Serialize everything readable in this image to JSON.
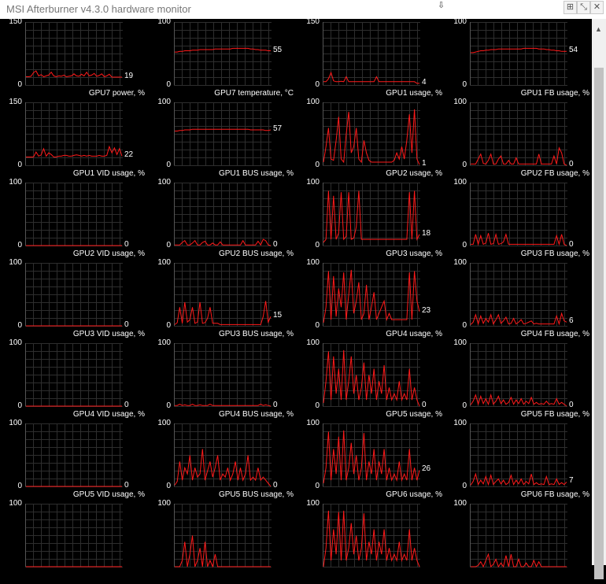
{
  "window": {
    "title": "MSI Afterburner v4.3.0 hardware monitor",
    "icons": [
      "resize-icon",
      "minimize-icon",
      "close-icon"
    ]
  },
  "graphs": [
    {
      "label": "GPU7 power, %",
      "max": "150",
      "min": "0",
      "value": "19",
      "samples": [
        20,
        20,
        21,
        30,
        34,
        22,
        25,
        20,
        22,
        24,
        31,
        22,
        20,
        22,
        21,
        24,
        20,
        21,
        22,
        27,
        22,
        21,
        26,
        22,
        31,
        22,
        24,
        28,
        21,
        23,
        27,
        20,
        22,
        26,
        19,
        19,
        19,
        19,
        19
      ]
    },
    {
      "label": "GPU7 temperature, °C",
      "max": "100",
      "min": "0",
      "value": "55",
      "samples": [
        53,
        53,
        54,
        54,
        55,
        55,
        55,
        56,
        56,
        56,
        57,
        57,
        57,
        57,
        57,
        57,
        58,
        58,
        58,
        58,
        58,
        58,
        58,
        59,
        59,
        59,
        59,
        59,
        59,
        59,
        58,
        58,
        57,
        57,
        56,
        56,
        56,
        55,
        55
      ]
    },
    {
      "label": "GPU1 usage, %",
      "max": "150",
      "min": "0",
      "value": "4",
      "samples": [
        8,
        8,
        15,
        30,
        10,
        8,
        8,
        9,
        8,
        20,
        8,
        8,
        8,
        8,
        8,
        8,
        8,
        8,
        8,
        8,
        8,
        20,
        8,
        8,
        8,
        8,
        8,
        8,
        8,
        8,
        8,
        8,
        8,
        8,
        8,
        8,
        8,
        4,
        4
      ]
    },
    {
      "label": "GPU1 FB usage, %",
      "max": "100",
      "min": "0",
      "value": "54",
      "samples": [
        52,
        52,
        53,
        54,
        55,
        55,
        56,
        56,
        57,
        57,
        57,
        58,
        58,
        58,
        58,
        58,
        58,
        58,
        58,
        58,
        58,
        59,
        59,
        59,
        59,
        59,
        59,
        58,
        58,
        58,
        57,
        57,
        56,
        56,
        55,
        55,
        54,
        54,
        54
      ]
    },
    {
      "label": "GPU1 VID usage, %",
      "max": "150",
      "min": "0",
      "value": "22",
      "samples": [
        20,
        20,
        20,
        20,
        32,
        22,
        25,
        40,
        22,
        30,
        26,
        20,
        20,
        22,
        22,
        24,
        24,
        22,
        22,
        24,
        25,
        24,
        22,
        24,
        22,
        24,
        22,
        22,
        22,
        24,
        22,
        22,
        24,
        45,
        30,
        42,
        26,
        40,
        22
      ]
    },
    {
      "label": "GPU1 BUS usage, %",
      "max": "100",
      "min": "0",
      "value": "57",
      "samples": [
        55,
        55,
        56,
        56,
        57,
        57,
        57,
        58,
        58,
        58,
        58,
        58,
        58,
        58,
        58,
        58,
        58,
        58,
        58,
        58,
        58,
        58,
        58,
        58,
        58,
        58,
        58,
        58,
        58,
        58,
        57,
        57,
        57,
        57,
        57,
        57,
        56,
        56,
        57
      ]
    },
    {
      "label": "GPU2 usage, %",
      "max": "100",
      "min": "0",
      "value": "1",
      "samples": [
        5,
        30,
        60,
        10,
        8,
        40,
        78,
        10,
        5,
        50,
        86,
        20,
        30,
        60,
        10,
        5,
        40,
        20,
        8,
        5,
        5,
        5,
        5,
        5,
        5,
        5,
        5,
        5,
        8,
        20,
        10,
        30,
        10,
        40,
        82,
        20,
        90,
        10,
        1
      ]
    },
    {
      "label": "GPU2 FB usage, %",
      "max": "100",
      "min": "0",
      "value": "0",
      "samples": [
        2,
        2,
        2,
        10,
        18,
        3,
        2,
        8,
        18,
        2,
        2,
        10,
        15,
        2,
        2,
        8,
        2,
        2,
        12,
        2,
        2,
        2,
        2,
        2,
        2,
        2,
        2,
        18,
        2,
        2,
        2,
        2,
        2,
        15,
        2,
        28,
        20,
        2,
        0
      ]
    },
    {
      "label": "GPU2 VID usage, %",
      "max": "100",
      "min": "0",
      "value": "0",
      "samples": [
        0,
        0,
        0,
        0,
        0,
        0,
        0,
        0,
        0,
        0,
        0,
        0,
        0,
        0,
        0,
        0,
        0,
        0,
        0,
        0,
        0,
        0,
        0,
        0,
        0,
        0,
        0,
        0,
        0,
        0,
        0,
        0,
        0,
        0,
        0,
        0,
        0,
        0,
        0
      ]
    },
    {
      "label": "GPU2 BUS usage, %",
      "max": "100",
      "min": "0",
      "value": "0",
      "samples": [
        1,
        1,
        1,
        5,
        8,
        1,
        1,
        4,
        8,
        1,
        1,
        5,
        7,
        1,
        1,
        4,
        1,
        1,
        6,
        1,
        1,
        1,
        1,
        1,
        1,
        1,
        1,
        8,
        1,
        1,
        1,
        1,
        1,
        7,
        1,
        10,
        8,
        1,
        0
      ]
    },
    {
      "label": "GPU3 usage, %",
      "max": "100",
      "min": "0",
      "value": "18",
      "samples": [
        5,
        10,
        88,
        10,
        80,
        10,
        20,
        86,
        10,
        15,
        86,
        10,
        12,
        30,
        88,
        10,
        10,
        10,
        10,
        10,
        10,
        10,
        10,
        10,
        10,
        10,
        10,
        10,
        10,
        10,
        10,
        10,
        10,
        10,
        86,
        10,
        88,
        10,
        18
      ]
    },
    {
      "label": "GPU3 FB usage, %",
      "max": "100",
      "min": "0",
      "value": "0",
      "samples": [
        2,
        2,
        18,
        2,
        16,
        2,
        4,
        20,
        2,
        3,
        18,
        2,
        3,
        6,
        18,
        2,
        2,
        2,
        2,
        2,
        2,
        2,
        2,
        2,
        2,
        2,
        2,
        2,
        2,
        2,
        2,
        2,
        2,
        2,
        16,
        2,
        18,
        2,
        0
      ]
    },
    {
      "label": "GPU3 VID usage, %",
      "max": "100",
      "min": "0",
      "value": "0",
      "samples": [
        0,
        0,
        0,
        0,
        0,
        0,
        0,
        0,
        0,
        0,
        0,
        0,
        0,
        0,
        0,
        0,
        0,
        0,
        0,
        0,
        0,
        0,
        0,
        0,
        0,
        0,
        0,
        0,
        0,
        0,
        0,
        0,
        0,
        0,
        0,
        0,
        0,
        0,
        0
      ]
    },
    {
      "label": "GPU3 BUS usage, %",
      "max": "100",
      "min": "0",
      "value": "15",
      "samples": [
        2,
        5,
        30,
        4,
        38,
        6,
        10,
        30,
        4,
        6,
        38,
        4,
        5,
        12,
        30,
        4,
        4,
        4,
        2,
        2,
        2,
        2,
        2,
        2,
        2,
        2,
        2,
        2,
        2,
        2,
        2,
        2,
        2,
        2,
        2,
        15,
        40,
        6,
        15
      ]
    },
    {
      "label": "GPU4 usage, %",
      "max": "100",
      "min": "0",
      "value": "23",
      "samples": [
        5,
        30,
        88,
        10,
        80,
        15,
        60,
        30,
        86,
        10,
        50,
        90,
        20,
        40,
        70,
        10,
        20,
        66,
        10,
        30,
        54,
        10,
        20,
        30,
        40,
        10,
        20,
        10,
        10,
        10,
        10,
        10,
        10,
        10,
        86,
        10,
        88,
        40,
        23
      ]
    },
    {
      "label": "GPU4 FB usage, %",
      "max": "100",
      "min": "0",
      "value": "6",
      "samples": [
        2,
        6,
        18,
        3,
        16,
        4,
        12,
        6,
        18,
        3,
        10,
        18,
        4,
        8,
        14,
        3,
        4,
        12,
        3,
        6,
        10,
        3,
        4,
        6,
        8,
        3,
        4,
        3,
        3,
        3,
        3,
        3,
        3,
        3,
        16,
        3,
        20,
        8,
        6
      ]
    },
    {
      "label": "GPU4 VID usage, %",
      "max": "100",
      "min": "0",
      "value": "0",
      "samples": [
        0,
        0,
        0,
        0,
        0,
        0,
        0,
        0,
        0,
        0,
        0,
        0,
        0,
        0,
        0,
        0,
        0,
        0,
        0,
        0,
        0,
        0,
        0,
        0,
        0,
        0,
        0,
        0,
        0,
        0,
        0,
        0,
        0,
        0,
        0,
        0,
        0,
        0,
        0
      ]
    },
    {
      "label": "GPU4 BUS usage, %",
      "max": "100",
      "min": "0",
      "value": "0",
      "samples": [
        1,
        1,
        3,
        1,
        2,
        1,
        1,
        3,
        1,
        1,
        2,
        1,
        1,
        1,
        3,
        1,
        1,
        1,
        1,
        1,
        1,
        1,
        1,
        1,
        1,
        1,
        1,
        1,
        1,
        1,
        1,
        1,
        1,
        1,
        3,
        1,
        2,
        1,
        0
      ]
    },
    {
      "label": "GPU5 usage, %",
      "max": "100",
      "min": "0",
      "value": "0",
      "samples": [
        5,
        40,
        88,
        10,
        80,
        20,
        60,
        10,
        90,
        10,
        40,
        80,
        20,
        50,
        10,
        30,
        70,
        10,
        50,
        20,
        60,
        10,
        40,
        20,
        66,
        10,
        30,
        10,
        20,
        10,
        40,
        10,
        20,
        10,
        60,
        10,
        30,
        10,
        0
      ]
    },
    {
      "label": "GPU5 FB usage, %",
      "max": "100",
      "min": "0",
      "value": "0",
      "samples": [
        2,
        8,
        18,
        3,
        16,
        4,
        12,
        3,
        18,
        3,
        8,
        16,
        4,
        10,
        3,
        6,
        14,
        3,
        10,
        4,
        12,
        3,
        8,
        4,
        14,
        3,
        6,
        3,
        4,
        3,
        8,
        3,
        4,
        3,
        12,
        3,
        6,
        3,
        0
      ]
    },
    {
      "label": "GPU5 VID usage, %",
      "max": "100",
      "min": "0",
      "value": "0",
      "samples": [
        0,
        0,
        0,
        0,
        0,
        0,
        0,
        0,
        0,
        0,
        0,
        0,
        0,
        0,
        0,
        0,
        0,
        0,
        0,
        0,
        0,
        0,
        0,
        0,
        0,
        0,
        0,
        0,
        0,
        0,
        0,
        0,
        0,
        0,
        0,
        0,
        0,
        0,
        0
      ]
    },
    {
      "label": "GPU5 BUS usage, %",
      "max": "100",
      "min": "0",
      "value": "0",
      "samples": [
        2,
        8,
        40,
        10,
        30,
        20,
        50,
        10,
        30,
        15,
        20,
        60,
        10,
        25,
        40,
        15,
        30,
        50,
        10,
        20,
        15,
        30,
        10,
        20,
        40,
        10,
        30,
        10,
        20,
        50,
        10,
        15,
        10,
        30,
        10,
        15,
        10,
        5,
        0
      ]
    },
    {
      "label": "GPU6 usage, %",
      "max": "100",
      "min": "0",
      "value": "26",
      "samples": [
        5,
        30,
        88,
        10,
        60,
        20,
        80,
        10,
        90,
        10,
        30,
        70,
        20,
        50,
        10,
        30,
        86,
        10,
        40,
        20,
        60,
        10,
        40,
        20,
        60,
        10,
        30,
        10,
        20,
        10,
        40,
        10,
        20,
        10,
        60,
        10,
        30,
        10,
        26
      ]
    },
    {
      "label": "GPU6 FB usage, %",
      "max": "100",
      "min": "0",
      "value": "7",
      "samples": [
        2,
        8,
        20,
        3,
        10,
        4,
        16,
        3,
        18,
        3,
        8,
        12,
        4,
        10,
        3,
        6,
        18,
        3,
        10,
        4,
        12,
        3,
        8,
        4,
        20,
        3,
        6,
        3,
        4,
        3,
        16,
        3,
        4,
        3,
        12,
        3,
        6,
        3,
        7
      ]
    },
    {
      "label": "",
      "max": "100",
      "min": "",
      "value": "",
      "samples": [
        0,
        0,
        0,
        0,
        0,
        0,
        0,
        0,
        0,
        0,
        0,
        0,
        0,
        0,
        0,
        0,
        0,
        0,
        0,
        0,
        0,
        0,
        0,
        0,
        0,
        0,
        0,
        0,
        0,
        0,
        0,
        0,
        0,
        0,
        0,
        0,
        0,
        0,
        0
      ]
    },
    {
      "label": "",
      "max": "100",
      "min": "",
      "value": "",
      "samples": [
        0,
        0,
        0,
        10,
        40,
        0,
        20,
        50,
        0,
        10,
        30,
        0,
        40,
        0,
        10,
        0,
        20,
        0,
        0,
        0,
        0,
        0,
        0,
        0,
        0,
        0,
        0,
        0,
        0,
        0,
        0,
        0,
        0,
        0,
        0,
        0,
        0,
        0,
        0
      ]
    },
    {
      "label": "",
      "max": "100",
      "min": "",
      "value": "",
      "samples": [
        0,
        30,
        90,
        10,
        60,
        20,
        88,
        10,
        90,
        10,
        30,
        70,
        20,
        50,
        10,
        30,
        86,
        10,
        40,
        20,
        60,
        10,
        40,
        20,
        60,
        10,
        30,
        10,
        20,
        10,
        40,
        10,
        20,
        10,
        60,
        10,
        30,
        10,
        0
      ]
    },
    {
      "label": "",
      "max": "100",
      "min": "",
      "value": "",
      "samples": [
        0,
        0,
        0,
        2,
        8,
        0,
        10,
        20,
        0,
        4,
        12,
        0,
        6,
        0,
        18,
        0,
        20,
        0,
        0,
        12,
        0,
        0,
        6,
        0,
        0,
        10,
        0,
        8,
        0,
        0,
        0,
        0,
        0,
        0,
        0,
        0,
        0,
        0,
        0
      ]
    }
  ]
}
